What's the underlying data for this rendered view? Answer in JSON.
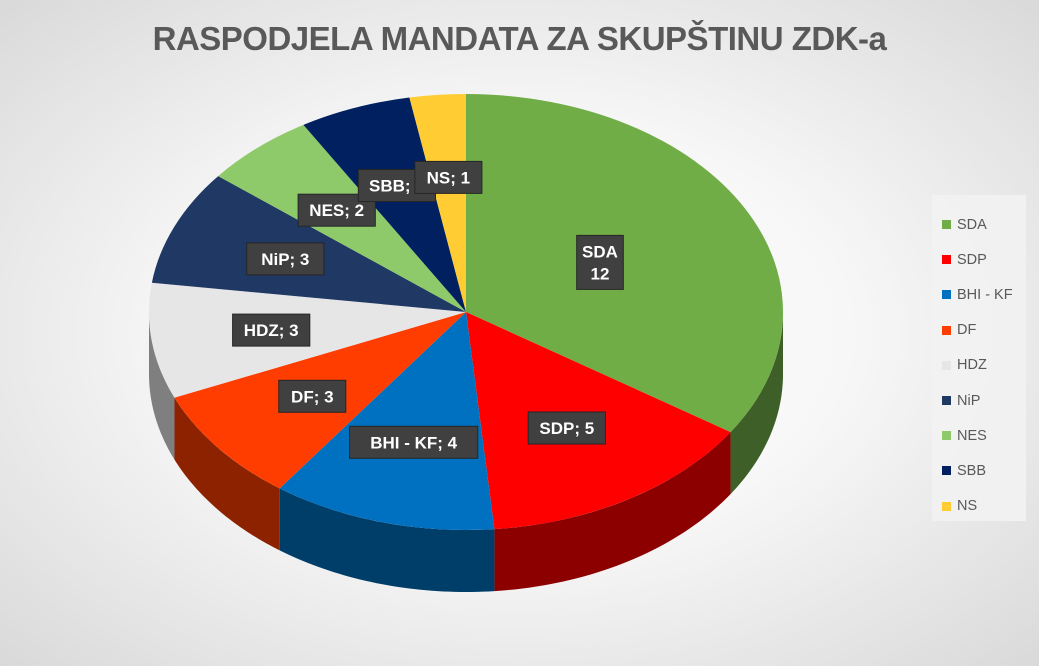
{
  "chart_data": {
    "type": "pie",
    "title": "RASPODJELA MANDATA ZA SKUPŠTINU ZDK-a",
    "legend_position": "right",
    "style": "3d",
    "slices": [
      {
        "name": "SDA",
        "value": 12,
        "label": "SDA\n12",
        "color": "#70ad47"
      },
      {
        "name": "SDP",
        "value": 5,
        "label": "SDP; 5",
        "color": "#ff0000"
      },
      {
        "name": "BHI - KF",
        "value": 4,
        "label": "BHI - KF; 4",
        "color": "#0070c0"
      },
      {
        "name": "DF",
        "value": 3,
        "label": "DF; 3",
        "color": "#ff3d00"
      },
      {
        "name": "HDZ",
        "value": 3,
        "label": "HDZ; 3",
        "color": "#e7e6e6"
      },
      {
        "name": "NiP",
        "value": 3,
        "label": "NiP; 3",
        "color": "#203864"
      },
      {
        "name": "NES",
        "value": 2,
        "label": "NES; 2",
        "color": "#8fca6a"
      },
      {
        "name": "SBB",
        "value": 2,
        "label": "SBB; 2",
        "color": "#002060"
      },
      {
        "name": "NS",
        "value": 1,
        "label": "NS; 1",
        "color": "#ffcc33"
      }
    ]
  }
}
